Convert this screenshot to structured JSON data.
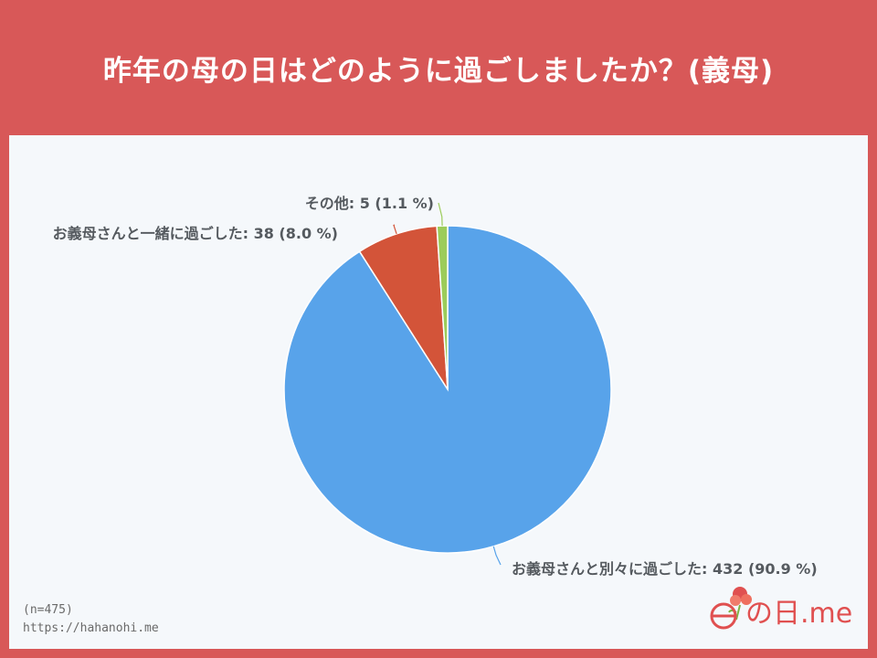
{
  "title": "昨年の母の日はどのように過ごしましたか？(義母)",
  "chart_data": {
    "type": "pie",
    "title": "昨年の母の日はどのように過ごしましたか？(義母)",
    "slices": [
      {
        "label": "お義母さんと別々に過ごした",
        "value": 432,
        "percent": 90.9,
        "color": "#58a3ea"
      },
      {
        "label": "お義母さんと一緒に過ごした",
        "value": 38,
        "percent": 8.0,
        "color": "#d35439"
      },
      {
        "label": "その他",
        "value": 5,
        "percent": 1.1,
        "color": "#9ccc5a"
      }
    ],
    "labels": [
      "お義母さんと別々に過ごした: 432 (90.9 %)",
      "お義母さんと一緒に過ごした: 38 (8.0 %)",
      "その他: 5 (1.1 %)"
    ]
  },
  "footer": {
    "n": "(n=475)",
    "url": "https://hahanohi.me"
  },
  "logo": {
    "text": "の日.me",
    "colors": {
      "accent": "#e05050",
      "leaf": "#7cb342"
    }
  }
}
